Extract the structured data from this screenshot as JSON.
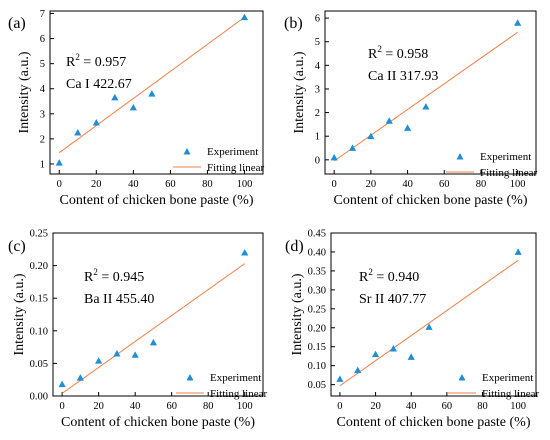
{
  "chart_data": [
    {
      "type": "scatter",
      "panel_label": "(a)",
      "xlabel": "Content of chicken bone paste (%)",
      "ylabel": "Intensity (a.u.)",
      "xlim": [
        -5,
        110
      ],
      "ylim": [
        0.6,
        7.1
      ],
      "xticks": [
        0,
        20,
        40,
        60,
        80,
        100
      ],
      "yticks": [
        1,
        2,
        3,
        4,
        5,
        6,
        7
      ],
      "ytick_labels": [
        "1",
        "2",
        "3",
        "4",
        "5",
        "6",
        "7"
      ],
      "r2_text": "0.957",
      "line_label": "Ca I 422.67",
      "points": [
        {
          "x": 0,
          "y": 1.05
        },
        {
          "x": 10,
          "y": 2.25
        },
        {
          "x": 20,
          "y": 2.65
        },
        {
          "x": 30,
          "y": 3.65
        },
        {
          "x": 40,
          "y": 3.25
        },
        {
          "x": 50,
          "y": 3.8
        },
        {
          "x": 100,
          "y": 6.85
        }
      ],
      "fit": [
        {
          "x": 0,
          "y": 1.45
        },
        {
          "x": 100,
          "y": 6.85
        }
      ],
      "series": [
        {
          "name": "Experiment",
          "marker": "triangle",
          "color": "#1f8ed6"
        },
        {
          "name": "Fitting linear",
          "marker": "line",
          "color": "#f07f45"
        }
      ],
      "legend_position": "bottom-right"
    },
    {
      "type": "scatter",
      "panel_label": "(b)",
      "xlabel": "Content of chicken bone paste (%)",
      "ylabel": "Intensity (a.u.)",
      "xlim": [
        -5,
        110
      ],
      "ylim": [
        -0.6,
        6.3
      ],
      "xticks": [
        0,
        20,
        40,
        60,
        80,
        100
      ],
      "yticks": [
        0,
        1,
        2,
        3,
        4,
        5,
        6
      ],
      "ytick_labels": [
        "0",
        "1",
        "2",
        "3",
        "4",
        "5",
        "6"
      ],
      "r2_text": "0.958",
      "line_label": "Ca II 317.93",
      "points": [
        {
          "x": 0,
          "y": 0.1
        },
        {
          "x": 10,
          "y": 0.5
        },
        {
          "x": 20,
          "y": 1.0
        },
        {
          "x": 30,
          "y": 1.65
        },
        {
          "x": 40,
          "y": 1.35
        },
        {
          "x": 50,
          "y": 2.25
        },
        {
          "x": 100,
          "y": 5.8
        }
      ],
      "fit": [
        {
          "x": 0,
          "y": -0.05
        },
        {
          "x": 100,
          "y": 5.4
        }
      ],
      "series": [
        {
          "name": "Experiment",
          "marker": "triangle",
          "color": "#1f8ed6"
        },
        {
          "name": "Fitting linear",
          "marker": "line",
          "color": "#f07f45"
        }
      ],
      "legend_position": "bottom-right"
    },
    {
      "type": "scatter",
      "panel_label": "(c)",
      "xlabel": "Content of chicken bone paste (%)",
      "ylabel": "Intensity (a.u.)",
      "xlim": [
        -5,
        110
      ],
      "ylim": [
        0.0,
        0.25
      ],
      "xticks": [
        0,
        20,
        40,
        60,
        80,
        100
      ],
      "yticks": [
        0.0,
        0.05,
        0.1,
        0.15,
        0.2,
        0.25
      ],
      "ytick_labels": [
        "0.00",
        "0.05",
        "0.10",
        "0.15",
        "0.20",
        "0.25"
      ],
      "r2_text": "0.945",
      "line_label": "Ba II 455.40",
      "points": [
        {
          "x": 0,
          "y": 0.018
        },
        {
          "x": 10,
          "y": 0.028
        },
        {
          "x": 20,
          "y": 0.054
        },
        {
          "x": 30,
          "y": 0.065
        },
        {
          "x": 40,
          "y": 0.063
        },
        {
          "x": 50,
          "y": 0.082
        },
        {
          "x": 100,
          "y": 0.22
        }
      ],
      "fit": [
        {
          "x": 0,
          "y": 0.004
        },
        {
          "x": 100,
          "y": 0.203
        }
      ],
      "series": [
        {
          "name": "Experiment",
          "marker": "triangle",
          "color": "#1f8ed6"
        },
        {
          "name": "Fitting linear",
          "marker": "line",
          "color": "#f07f45"
        }
      ],
      "legend_position": "bottom-right"
    },
    {
      "type": "scatter",
      "panel_label": "(d)",
      "xlabel": "Content of chicken bone paste (%)",
      "ylabel": "Intensity (a.u.)",
      "xlim": [
        -5,
        110
      ],
      "ylim": [
        0.02,
        0.45
      ],
      "xticks": [
        0,
        20,
        40,
        60,
        80,
        100
      ],
      "yticks": [
        0.05,
        0.1,
        0.15,
        0.2,
        0.25,
        0.3,
        0.35,
        0.4,
        0.45
      ],
      "ytick_labels": [
        "0.05",
        "0.10",
        "0.15",
        "0.20",
        "0.25",
        "0.30",
        "0.35",
        "0.40",
        "0.45"
      ],
      "r2_text": "0.940",
      "line_label": "Sr II 407.77",
      "points": [
        {
          "x": 0,
          "y": 0.065
        },
        {
          "x": 10,
          "y": 0.088
        },
        {
          "x": 20,
          "y": 0.13
        },
        {
          "x": 30,
          "y": 0.145
        },
        {
          "x": 40,
          "y": 0.123
        },
        {
          "x": 50,
          "y": 0.202
        },
        {
          "x": 100,
          "y": 0.4
        }
      ],
      "fit": [
        {
          "x": 0,
          "y": 0.047
        },
        {
          "x": 100,
          "y": 0.378
        }
      ],
      "series": [
        {
          "name": "Experiment",
          "marker": "triangle",
          "color": "#1f8ed6"
        },
        {
          "name": "Fitting linear",
          "marker": "line",
          "color": "#f07f45"
        }
      ],
      "legend_position": "bottom-right"
    }
  ]
}
